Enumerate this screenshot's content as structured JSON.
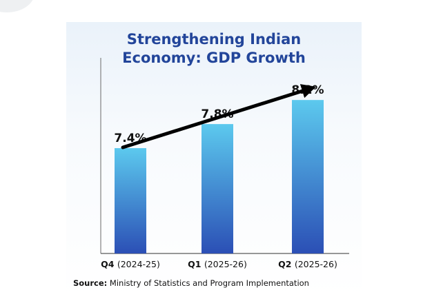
{
  "chart_data": {
    "type": "bar",
    "title": "Strengthening Indian Economy: GDP Growth",
    "title_lines": [
      "Strengthening Indian",
      "Economy: GDP Growth"
    ],
    "categories": [
      {
        "quarter": "Q4",
        "period": "(2024-25)"
      },
      {
        "quarter": "Q1",
        "period": "(2025-26)"
      },
      {
        "quarter": "Q2",
        "period": "(2025-26)"
      }
    ],
    "values": [
      7.4,
      7.8,
      8.2
    ],
    "data_labels": [
      "7.4%",
      "7.8%",
      "8.2%"
    ],
    "unit": "%",
    "ylim": [
      5.65,
      8.9
    ],
    "trend_arrow": true,
    "grid": false,
    "legend": "none",
    "colors": {
      "bar_top": "#5cc9ee",
      "bar_bottom": "#2b4fb5",
      "title": "#22459a",
      "text": "#111111",
      "arrow": "#000000"
    }
  },
  "source": {
    "label": "Source:",
    "text": "Ministry of Statistics and Program Implementation"
  }
}
